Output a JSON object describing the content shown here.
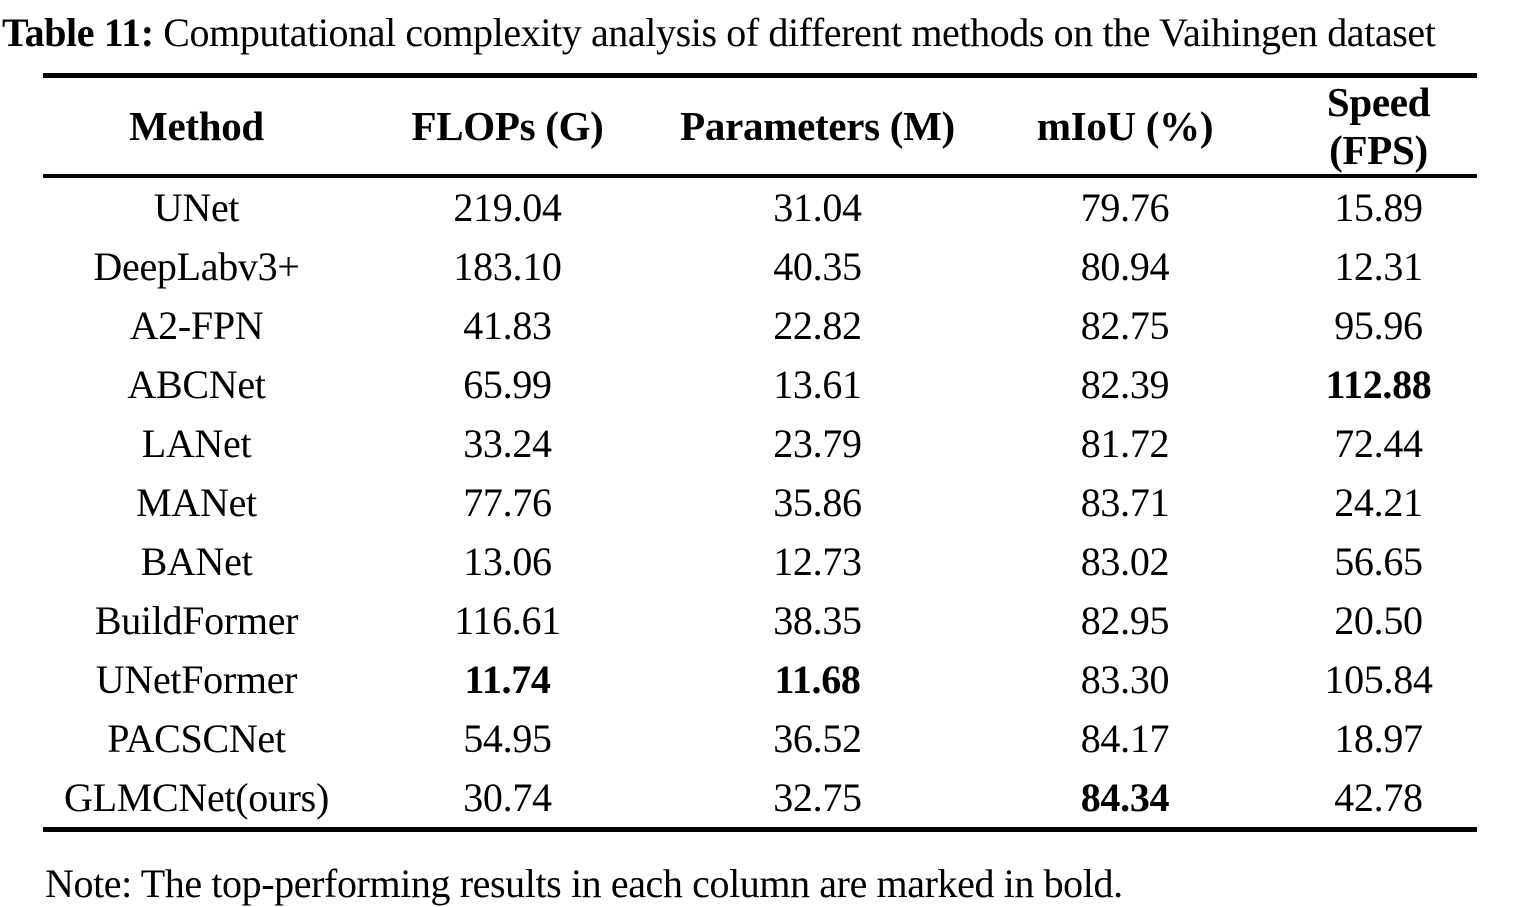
{
  "caption": {
    "label": "Table 11:",
    "text": " Computational complexity analysis of different methods on the Vaihingen dataset"
  },
  "table": {
    "columns": [
      "Method",
      "FLOPs (G)",
      "Parameters (M)",
      "mIoU (%)",
      "Speed (FPS)"
    ],
    "rows": [
      {
        "cells": [
          "UNet",
          "219.04",
          "31.04",
          "79.76",
          "15.89"
        ],
        "bold_indices": []
      },
      {
        "cells": [
          "DeepLabv3+",
          "183.10",
          "40.35",
          "80.94",
          "12.31"
        ],
        "bold_indices": []
      },
      {
        "cells": [
          "A2-FPN",
          "41.83",
          "22.82",
          "82.75",
          "95.96"
        ],
        "bold_indices": []
      },
      {
        "cells": [
          "ABCNet",
          "65.99",
          "13.61",
          "82.39",
          "112.88"
        ],
        "bold_indices": [
          4
        ]
      },
      {
        "cells": [
          "LANet",
          "33.24",
          "23.79",
          "81.72",
          "72.44"
        ],
        "bold_indices": []
      },
      {
        "cells": [
          "MANet",
          "77.76",
          "35.86",
          "83.71",
          "24.21"
        ],
        "bold_indices": []
      },
      {
        "cells": [
          "BANet",
          "13.06",
          "12.73",
          "83.02",
          "56.65"
        ],
        "bold_indices": []
      },
      {
        "cells": [
          "BuildFormer",
          "116.61",
          "38.35",
          "82.95",
          "20.50"
        ],
        "bold_indices": []
      },
      {
        "cells": [
          "UNetFormer",
          "11.74",
          "11.68",
          "83.30",
          "105.84"
        ],
        "bold_indices": [
          1,
          2
        ]
      },
      {
        "cells": [
          "PACSCNet",
          "54.95",
          "36.52",
          "84.17",
          "18.97"
        ],
        "bold_indices": []
      },
      {
        "cells": [
          "GLMCNet(ours)",
          "30.74",
          "32.75",
          "84.34",
          "42.78"
        ],
        "bold_indices": [
          3
        ]
      }
    ]
  },
  "note": "Note: The top-performing results in each column are marked in bold."
}
